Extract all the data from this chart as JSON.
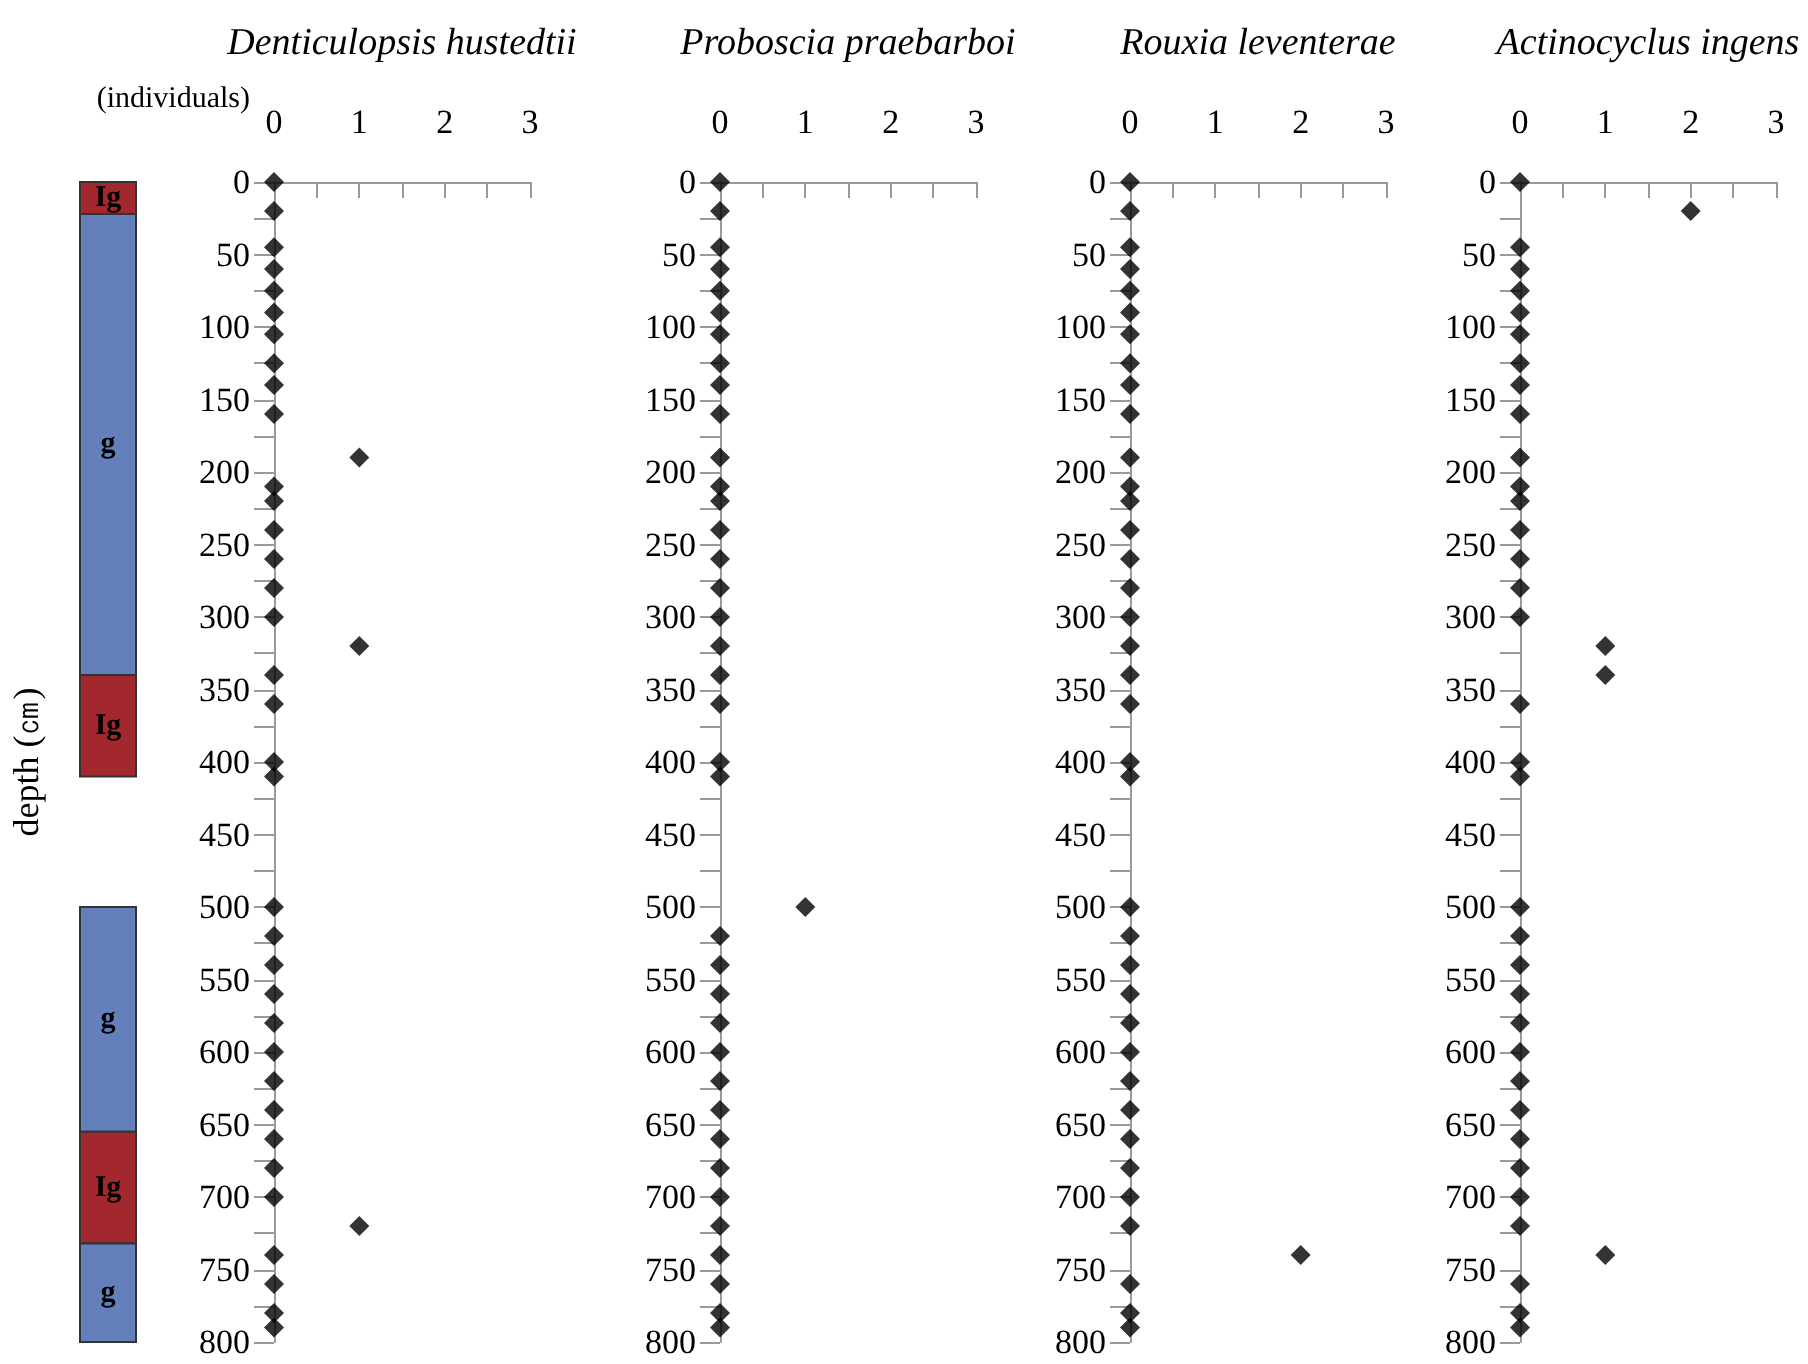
{
  "chart_data": [
    {
      "type": "bar",
      "categories": [
        null
      ],
      "ylim": [
        800,
        0
      ],
      "tick_labels": false,
      "series": [
        {
          "color": "#a3282d",
          "values": [
            22
          ],
          "base": [
            0
          ],
          "value_labels": [
            "Ig"
          ]
        },
        {
          "color": "#6380bd",
          "values": [
            318
          ],
          "base": [
            22
          ],
          "value_labels": [
            "g"
          ]
        },
        {
          "color": "#a3282d",
          "values": [
            70
          ],
          "base": [
            340
          ],
          "value_labels": [
            "Ig"
          ]
        },
        {
          "color": "#6380bd",
          "values": [
            155
          ],
          "base": [
            500
          ],
          "value_labels": [
            "g"
          ]
        },
        {
          "color": "#a3282d",
          "values": [
            77
          ],
          "base": [
            655
          ],
          "value_labels": [
            "Ig"
          ]
        },
        {
          "color": "#6380bd",
          "values": [
            68
          ],
          "base": [
            732
          ],
          "value_labels": [
            "g"
          ]
        }
      ]
    },
    {
      "type": "scatter",
      "title": "Denticulopsis hustedtii",
      "xlabel": "(individuals)",
      "ylabel": "depth (㎝)",
      "marker": "diamond",
      "grid": false,
      "xlim": [
        0,
        3
      ],
      "ylim": [
        800,
        0
      ],
      "xticks": [
        0,
        {
          "value": 0.5,
          "label": null
        },
        1,
        {
          "value": 1.5,
          "label": null
        },
        2,
        {
          "value": 2.5,
          "label": null
        },
        3
      ],
      "yticks": [
        0,
        {
          "value": 25,
          "label": null
        },
        50,
        {
          "value": 75,
          "label": null
        },
        100,
        {
          "value": 125,
          "label": null
        },
        150,
        {
          "value": 175,
          "label": null
        },
        200,
        {
          "value": 225,
          "label": null
        },
        250,
        {
          "value": 275,
          "label": null
        },
        300,
        {
          "value": 325,
          "label": null
        },
        350,
        {
          "value": 375,
          "label": null
        },
        400,
        {
          "value": 425,
          "label": null
        },
        450,
        {
          "value": 475,
          "label": null
        },
        500,
        {
          "value": 525,
          "label": null
        },
        550,
        {
          "value": 575,
          "label": null
        },
        600,
        {
          "value": 625,
          "label": null
        },
        650,
        {
          "value": 675,
          "label": null
        },
        700,
        {
          "value": 725,
          "label": null
        },
        750,
        {
          "value": 775,
          "label": null
        },
        800
      ],
      "series": [
        {
          "color": "#000000",
          "x": [
            0,
            0,
            0,
            0,
            0,
            0,
            0,
            0,
            0,
            0,
            1,
            0,
            0,
            0,
            0,
            0,
            0,
            1,
            0,
            0,
            0,
            0,
            0,
            0,
            0,
            0,
            0,
            0,
            0,
            0,
            0,
            0,
            0,
            1,
            0,
            0,
            0,
            0
          ],
          "values": [
            0,
            20,
            45,
            60,
            75,
            90,
            105,
            125,
            140,
            160,
            190,
            210,
            220,
            240,
            260,
            280,
            300,
            320,
            340,
            360,
            400,
            410,
            500,
            520,
            540,
            560,
            580,
            600,
            620,
            640,
            660,
            680,
            700,
            720,
            740,
            760,
            780,
            790
          ]
        }
      ]
    },
    {
      "type": "scatter",
      "title": "Proboscia praebarboi",
      "marker": "diamond",
      "grid": false,
      "xlim": [
        0,
        3
      ],
      "ylim": [
        800,
        0
      ],
      "xticks": [
        0,
        {
          "value": 0.5,
          "label": null
        },
        1,
        {
          "value": 1.5,
          "label": null
        },
        2,
        {
          "value": 2.5,
          "label": null
        },
        3
      ],
      "yticks": [
        0,
        {
          "value": 25,
          "label": null
        },
        50,
        {
          "value": 75,
          "label": null
        },
        100,
        {
          "value": 125,
          "label": null
        },
        150,
        {
          "value": 175,
          "label": null
        },
        200,
        {
          "value": 225,
          "label": null
        },
        250,
        {
          "value": 275,
          "label": null
        },
        300,
        {
          "value": 325,
          "label": null
        },
        350,
        {
          "value": 375,
          "label": null
        },
        400,
        {
          "value": 425,
          "label": null
        },
        450,
        {
          "value": 475,
          "label": null
        },
        500,
        {
          "value": 525,
          "label": null
        },
        550,
        {
          "value": 575,
          "label": null
        },
        600,
        {
          "value": 625,
          "label": null
        },
        650,
        {
          "value": 675,
          "label": null
        },
        700,
        {
          "value": 725,
          "label": null
        },
        750,
        {
          "value": 775,
          "label": null
        },
        800
      ],
      "series": [
        {
          "color": "#000000",
          "x": [
            0,
            0,
            0,
            0,
            0,
            0,
            0,
            0,
            0,
            0,
            0,
            0,
            0,
            0,
            0,
            0,
            0,
            0,
            0,
            0,
            0,
            0,
            1,
            0,
            0,
            0,
            0,
            0,
            0,
            0,
            0,
            0,
            0,
            0,
            0,
            0,
            0,
            0
          ],
          "values": [
            0,
            20,
            45,
            60,
            75,
            90,
            105,
            125,
            140,
            160,
            190,
            210,
            220,
            240,
            260,
            280,
            300,
            320,
            340,
            360,
            400,
            410,
            500,
            520,
            540,
            560,
            580,
            600,
            620,
            640,
            660,
            680,
            700,
            720,
            740,
            760,
            780,
            790
          ]
        }
      ]
    },
    {
      "type": "scatter",
      "title": "Rouxia leventerae",
      "marker": "diamond",
      "grid": false,
      "xlim": [
        0,
        3
      ],
      "ylim": [
        800,
        0
      ],
      "xticks": [
        0,
        {
          "value": 0.5,
          "label": null
        },
        1,
        {
          "value": 1.5,
          "label": null
        },
        2,
        {
          "value": 2.5,
          "label": null
        },
        3
      ],
      "yticks": [
        0,
        {
          "value": 25,
          "label": null
        },
        50,
        {
          "value": 75,
          "label": null
        },
        100,
        {
          "value": 125,
          "label": null
        },
        150,
        {
          "value": 175,
          "label": null
        },
        200,
        {
          "value": 225,
          "label": null
        },
        250,
        {
          "value": 275,
          "label": null
        },
        300,
        {
          "value": 325,
          "label": null
        },
        350,
        {
          "value": 375,
          "label": null
        },
        400,
        {
          "value": 425,
          "label": null
        },
        450,
        {
          "value": 475,
          "label": null
        },
        500,
        {
          "value": 525,
          "label": null
        },
        550,
        {
          "value": 575,
          "label": null
        },
        600,
        {
          "value": 625,
          "label": null
        },
        650,
        {
          "value": 675,
          "label": null
        },
        700,
        {
          "value": 725,
          "label": null
        },
        750,
        {
          "value": 775,
          "label": null
        },
        800
      ],
      "series": [
        {
          "color": "#000000",
          "x": [
            0,
            0,
            0,
            0,
            0,
            0,
            0,
            0,
            0,
            0,
            0,
            0,
            0,
            0,
            0,
            0,
            0,
            0,
            0,
            0,
            0,
            0,
            0,
            0,
            0,
            0,
            0,
            0,
            0,
            0,
            0,
            0,
            0,
            0,
            2,
            0,
            0,
            0
          ],
          "values": [
            0,
            20,
            45,
            60,
            75,
            90,
            105,
            125,
            140,
            160,
            190,
            210,
            220,
            240,
            260,
            280,
            300,
            320,
            340,
            360,
            400,
            410,
            500,
            520,
            540,
            560,
            580,
            600,
            620,
            640,
            660,
            680,
            700,
            720,
            740,
            760,
            780,
            790
          ]
        }
      ]
    },
    {
      "type": "scatter",
      "title": "Actinocyclus ingens",
      "marker": "diamond",
      "grid": false,
      "xlim": [
        0,
        3
      ],
      "ylim": [
        800,
        0
      ],
      "xticks": [
        0,
        {
          "value": 0.5,
          "label": null
        },
        1,
        {
          "value": 1.5,
          "label": null
        },
        2,
        {
          "value": 2.5,
          "label": null
        },
        3
      ],
      "yticks": [
        0,
        {
          "value": 25,
          "label": null
        },
        50,
        {
          "value": 75,
          "label": null
        },
        100,
        {
          "value": 125,
          "label": null
        },
        150,
        {
          "value": 175,
          "label": null
        },
        200,
        {
          "value": 225,
          "label": null
        },
        250,
        {
          "value": 275,
          "label": null
        },
        300,
        {
          "value": 325,
          "label": null
        },
        350,
        {
          "value": 375,
          "label": null
        },
        400,
        {
          "value": 425,
          "label": null
        },
        450,
        {
          "value": 475,
          "label": null
        },
        500,
        {
          "value": 525,
          "label": null
        },
        550,
        {
          "value": 575,
          "label": null
        },
        600,
        {
          "value": 625,
          "label": null
        },
        650,
        {
          "value": 675,
          "label": null
        },
        700,
        {
          "value": 725,
          "label": null
        },
        750,
        {
          "value": 775,
          "label": null
        },
        800
      ],
      "series": [
        {
          "color": "#000000",
          "x": [
            0,
            2,
            0,
            0,
            0,
            0,
            0,
            0,
            0,
            0,
            0,
            0,
            0,
            0,
            0,
            0,
            0,
            1,
            1,
            0,
            0,
            0,
            0,
            0,
            0,
            0,
            0,
            0,
            0,
            0,
            0,
            0,
            0,
            0,
            1,
            0,
            0,
            0
          ],
          "values": [
            0,
            20,
            45,
            60,
            75,
            90,
            105,
            125,
            140,
            160,
            190,
            210,
            220,
            240,
            260,
            280,
            300,
            320,
            340,
            360,
            400,
            410,
            500,
            520,
            540,
            560,
            580,
            600,
            620,
            640,
            660,
            680,
            700,
            720,
            740,
            760,
            780,
            790
          ]
        }
      ]
    }
  ]
}
